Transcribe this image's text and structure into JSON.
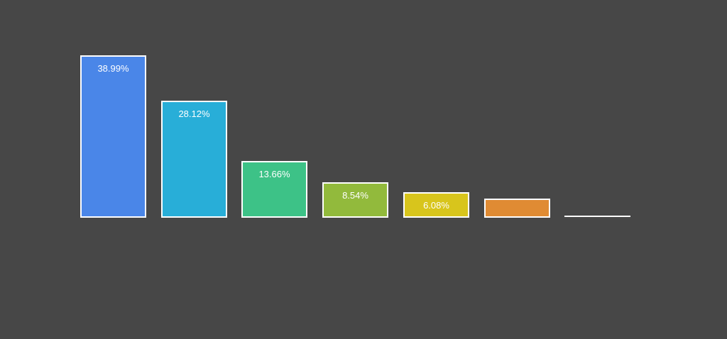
{
  "canvas": {
    "background_color": "#474747"
  },
  "chart_data": {
    "type": "bar",
    "title": "",
    "xlabel": "",
    "ylabel": "",
    "categories": [
      "",
      "",
      "",
      "",
      "",
      "",
      ""
    ],
    "values": [
      38.99,
      28.12,
      13.66,
      8.54,
      6.08,
      4.6,
      0.1
    ],
    "data_labels": [
      "38.99%",
      "28.12%",
      "13.66%",
      "8.54%",
      "6.08%",
      "",
      ""
    ],
    "colors": [
      "#4a86e8",
      "#28aed8",
      "#3dc287",
      "#92ba3c",
      "#d8c51c",
      "#e08b33",
      "#ffffff"
    ],
    "bar_border_color": "#ffffff",
    "label_color": "#ffffff",
    "ylim": [
      0,
      40
    ],
    "grid": false,
    "legend": "none",
    "axes_visible": false
  }
}
